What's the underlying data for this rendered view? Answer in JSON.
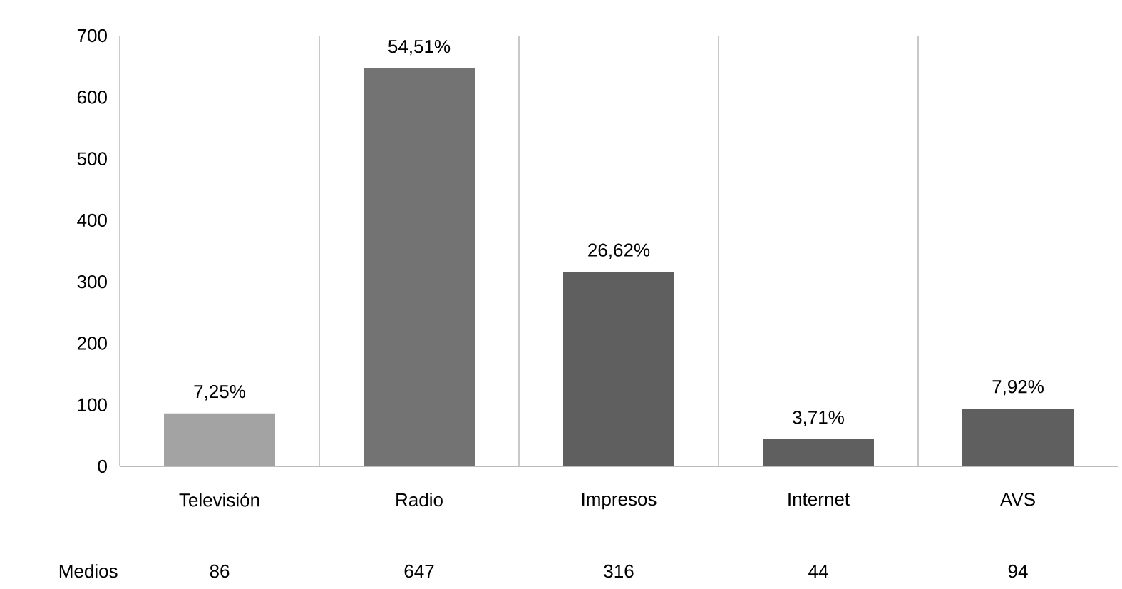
{
  "chart_data": {
    "type": "bar",
    "categories": [
      "Televisión",
      "Radio",
      "Impresos",
      "Internet",
      "AVS"
    ],
    "series": [
      {
        "name": "Medios",
        "values": [
          86,
          647,
          316,
          44,
          94
        ],
        "colors": [
          "#a3a3a3",
          "#737373",
          "#5f5f5f",
          "#5f5f5f",
          "#5f5f5f"
        ]
      }
    ],
    "data_labels": true,
    "annotations": [
      {
        "text": "7,25%",
        "x": "Televisión",
        "y": 86
      },
      {
        "text": "54,51%",
        "x": "Radio",
        "y": 647
      },
      {
        "text": "26,62%",
        "x": "Impresos",
        "y": 316
      },
      {
        "text": "3,71%",
        "x": "Internet",
        "y": 44
      },
      {
        "text": "7,92%",
        "x": "AVS",
        "y": 94
      }
    ],
    "ylim": [
      0,
      700
    ],
    "yticks": [
      0,
      100,
      200,
      300,
      400,
      500,
      600,
      700
    ],
    "grid": "x",
    "legend": false
  }
}
